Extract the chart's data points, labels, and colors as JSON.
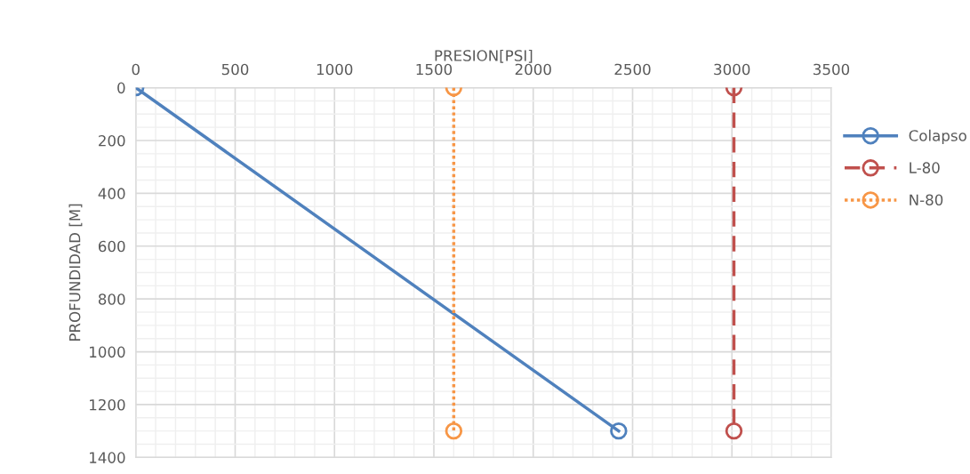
{
  "chart_data": {
    "type": "line",
    "xlabel": "PRESION[PSI]",
    "ylabel": "PROFUNDIDAD [M]",
    "xlim": [
      0,
      3500
    ],
    "xticks": [
      0,
      500,
      1000,
      1500,
      2000,
      2500,
      3000,
      3500
    ],
    "ylim": [
      1400,
      0
    ],
    "yticks": [
      0,
      200,
      400,
      600,
      800,
      1000,
      1200,
      1400
    ],
    "grid": true,
    "legend": "right",
    "marker": "circle",
    "series": [
      {
        "name": "Colapso",
        "color": "#4f81bd",
        "x": [
          0,
          2430
        ],
        "values": [
          0,
          1300
        ],
        "line_style": "solid"
      },
      {
        "name": "L-80",
        "color": "#c0504d",
        "x": [
          3010,
          3010
        ],
        "values": [
          0,
          1300
        ],
        "line_style": "dashed"
      },
      {
        "name": "N-80",
        "color": "#f79646",
        "x": [
          1600,
          1600
        ],
        "values": [
          0,
          1300
        ],
        "line_style": "dotted"
      }
    ]
  }
}
